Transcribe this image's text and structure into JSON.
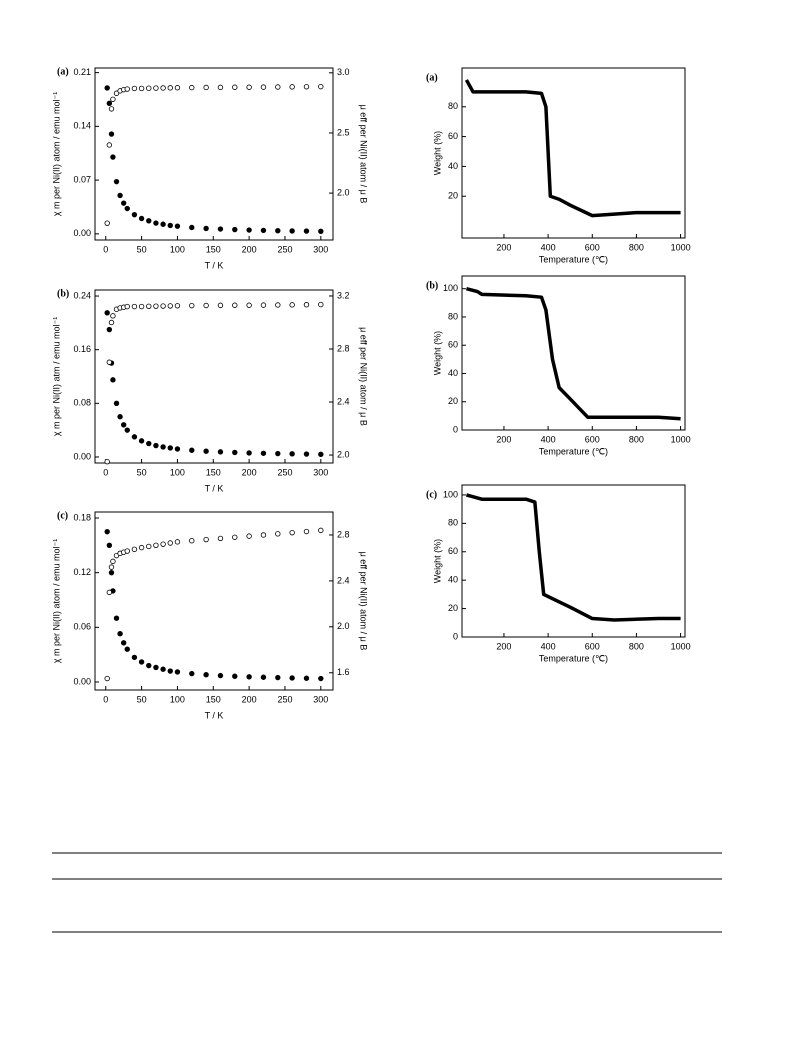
{
  "chart_data": [
    {
      "type": "scatter",
      "label": "(a)",
      "xlabel": "T / K",
      "ylabel": "χ m per Ni(II) atom / emu mol⁻¹",
      "y2label": "μ eff per Ni(II) atom / μ B",
      "x": [
        2,
        5,
        8,
        10,
        15,
        20,
        25,
        30,
        40,
        50,
        60,
        70,
        80,
        90,
        100,
        120,
        140,
        160,
        180,
        200,
        220,
        240,
        260,
        280,
        300
      ],
      "series": [
        {
          "marker": "filled",
          "color": "#000000",
          "values": [
            0.19,
            0.17,
            0.13,
            0.1,
            0.068,
            0.05,
            0.04,
            0.033,
            0.025,
            0.02,
            0.017,
            0.014,
            0.0125,
            0.011,
            0.01,
            0.0083,
            0.0071,
            0.0063,
            0.0056,
            0.005,
            0.0045,
            0.0041,
            0.0038,
            0.0036,
            0.0033
          ]
        },
        {
          "marker": "open",
          "color": "#000000",
          "axis": "y2",
          "values": [
            1.75,
            2.4,
            2.7,
            2.78,
            2.83,
            2.85,
            2.86,
            2.865,
            2.87,
            2.87,
            2.872,
            2.873,
            2.874,
            2.875,
            2.876,
            2.877,
            2.878,
            2.879,
            2.88,
            2.88,
            2.881,
            2.882,
            2.883,
            2.884,
            2.885
          ]
        }
      ],
      "xlim": [
        -15,
        317
      ],
      "xticks": [
        0,
        50,
        100,
        150,
        200,
        250,
        300
      ],
      "ylim": [
        -0.008,
        0.216
      ],
      "yticks": [
        {
          "value": 0,
          "label": "0.00"
        },
        0.07,
        0.14,
        0.21
      ],
      "y2lim": [
        1.61,
        3.04
      ],
      "y2ticks": [
        {
          "value": 2,
          "label": "2.0"
        },
        2.5,
        {
          "value": 3,
          "label": "3.0"
        }
      ]
    },
    {
      "type": "scatter",
      "label": "(b)",
      "xlabel": "T / K",
      "ylabel": "χ m per Ni(II) atm / emu mol⁻¹",
      "y2label": "μ eff per Ni(II) atom / μ B",
      "x": [
        2,
        5,
        8,
        10,
        15,
        20,
        25,
        30,
        40,
        50,
        60,
        70,
        80,
        90,
        100,
        120,
        140,
        160,
        180,
        200,
        220,
        240,
        260,
        280,
        300
      ],
      "series": [
        {
          "marker": "filled",
          "color": "#000000",
          "values": [
            0.215,
            0.19,
            0.14,
            0.115,
            0.08,
            0.06,
            0.048,
            0.04,
            0.03,
            0.024,
            0.02,
            0.017,
            0.015,
            0.0135,
            0.012,
            0.01,
            0.0086,
            0.0076,
            0.0068,
            0.006,
            0.0055,
            0.005,
            0.0047,
            0.0043,
            0.004
          ]
        },
        {
          "marker": "open",
          "color": "#000000",
          "axis": "y2",
          "values": [
            1.95,
            2.7,
            3.0,
            3.05,
            3.1,
            3.11,
            3.115,
            3.12,
            3.12,
            3.12,
            3.122,
            3.123,
            3.124,
            3.125,
            3.126,
            3.127,
            3.128,
            3.129,
            3.13,
            3.13,
            3.131,
            3.132,
            3.133,
            3.134,
            3.135
          ]
        }
      ],
      "xlim": [
        -15,
        317
      ],
      "xticks": [
        0,
        50,
        100,
        150,
        200,
        250,
        300
      ],
      "ylim": [
        -0.009,
        0.249
      ],
      "yticks": [
        {
          "value": 0,
          "label": "0.00"
        },
        0.08,
        0.16,
        0.24
      ],
      "y2lim": [
        1.94,
        3.245
      ],
      "y2ticks": [
        {
          "value": 2,
          "label": "2.0"
        },
        2.4,
        2.8,
        3.2
      ]
    },
    {
      "type": "scatter",
      "label": "(c)",
      "xlabel": "T / K",
      "ylabel": "χ m per Ni(II) atom / emu mol⁻¹",
      "y2label": "μ eff per Ni(II) atom / μ B",
      "x": [
        2,
        5,
        8,
        10,
        15,
        20,
        25,
        30,
        40,
        50,
        60,
        70,
        80,
        90,
        100,
        120,
        140,
        160,
        180,
        200,
        220,
        240,
        260,
        280,
        300
      ],
      "series": [
        {
          "marker": "filled",
          "color": "#000000",
          "values": [
            0.165,
            0.15,
            0.12,
            0.1,
            0.07,
            0.053,
            0.043,
            0.036,
            0.027,
            0.022,
            0.018,
            0.016,
            0.014,
            0.012,
            0.011,
            0.0092,
            0.008,
            0.007,
            0.0063,
            0.0057,
            0.0052,
            0.0048,
            0.0044,
            0.0041,
            0.0038
          ]
        },
        {
          "marker": "open",
          "color": "#000000",
          "axis": "y2",
          "values": [
            1.55,
            2.3,
            2.52,
            2.57,
            2.62,
            2.64,
            2.65,
            2.66,
            2.675,
            2.69,
            2.7,
            2.71,
            2.72,
            2.73,
            2.74,
            2.75,
            2.76,
            2.77,
            2.78,
            2.79,
            2.8,
            2.81,
            2.82,
            2.83,
            2.84
          ]
        }
      ],
      "xlim": [
        -15,
        317
      ],
      "xticks": [
        0,
        50,
        100,
        150,
        200,
        250,
        300
      ],
      "ylim": [
        -0.0088,
        0.1866
      ],
      "yticks": [
        {
          "value": 0,
          "label": "0.00"
        },
        0.06,
        0.12,
        0.18
      ],
      "y2lim": [
        1.45,
        3.0
      ],
      "y2ticks": [
        1.6,
        {
          "value": 2,
          "label": "2.0"
        },
        2.4,
        2.8
      ]
    },
    {
      "type": "line",
      "label": "(a)",
      "xlabel": "Temperature (℃)",
      "ylabel": "Weight (%)",
      "x": [
        30,
        60,
        100,
        300,
        370,
        390,
        410,
        450,
        500,
        600,
        700,
        800,
        1000
      ],
      "series": [
        {
          "color": "#000000",
          "values": [
            98,
            90,
            90,
            90,
            89,
            80,
            20,
            18,
            14,
            7,
            8,
            9,
            9
          ]
        }
      ],
      "xlim": [
        10,
        1020
      ],
      "xticks": [
        200,
        400,
        600,
        800,
        1000
      ],
      "ylim": [
        -8,
        106
      ],
      "yticks": [
        20,
        40,
        60,
        80
      ]
    },
    {
      "type": "line",
      "label": "(b)",
      "xlabel": "Temperature (℃)",
      "ylabel": "Weight (%)",
      "x": [
        30,
        80,
        100,
        300,
        370,
        390,
        420,
        450,
        500,
        580,
        700,
        900,
        1000
      ],
      "series": [
        {
          "color": "#000000",
          "values": [
            100,
            98,
            96,
            95,
            94,
            85,
            50,
            30,
            22,
            9,
            9,
            9,
            8
          ]
        }
      ],
      "xlim": [
        10,
        1020
      ],
      "xticks": [
        200,
        400,
        600,
        800,
        1000
      ],
      "ylim": [
        0,
        109
      ],
      "yticks": [
        0,
        20,
        40,
        60,
        80,
        100
      ]
    },
    {
      "type": "line",
      "label": "(c)",
      "xlabel": "Temperature (℃)",
      "ylabel": "Weight (%)",
      "x": [
        30,
        100,
        300,
        340,
        360,
        380,
        420,
        500,
        600,
        700,
        900,
        1000
      ],
      "series": [
        {
          "color": "#000000",
          "values": [
            100,
            97,
            97,
            95,
            60,
            30,
            27,
            21,
            13,
            12,
            13,
            13
          ]
        }
      ],
      "xlim": [
        10,
        1020
      ],
      "xticks": [
        200,
        400,
        600,
        800,
        1000
      ],
      "ylim": [
        0,
        107
      ],
      "yticks": [
        0,
        20,
        40,
        60,
        80,
        100
      ]
    }
  ]
}
